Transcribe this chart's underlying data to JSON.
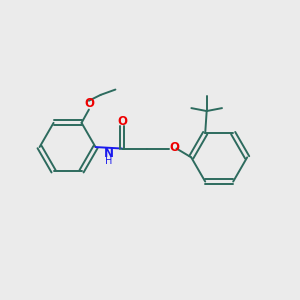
{
  "background_color": "#ebebeb",
  "bond_color": "#2d6b5e",
  "oxygen_color": "#ee0000",
  "nitrogen_color": "#1a1aee",
  "line_width": 1.4,
  "figsize": [
    3.0,
    3.0
  ],
  "dpi": 100,
  "xlim": [
    0,
    10
  ],
  "ylim": [
    0,
    10
  ]
}
